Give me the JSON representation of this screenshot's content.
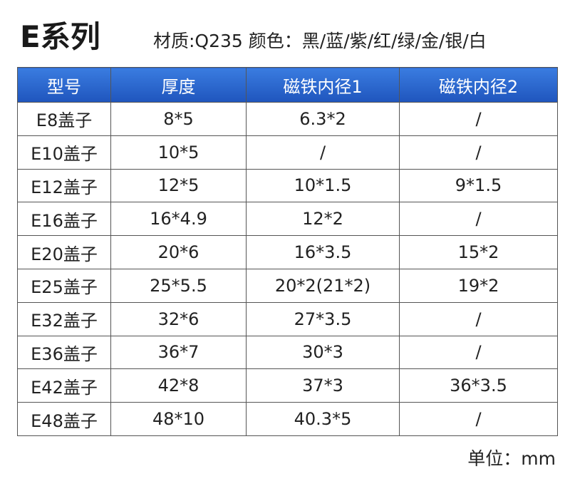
{
  "header": {
    "title": "E系列",
    "subtitle": "材质:Q235 颜色：黑/蓝/紫/红/绿/金/银/白"
  },
  "table": {
    "columns": [
      "型号",
      "厚度",
      "磁铁内径1",
      "磁铁内径2"
    ],
    "rows": [
      [
        "E8盖子",
        "8*5",
        "6.3*2",
        "/"
      ],
      [
        "E10盖子",
        "10*5",
        "/",
        "/"
      ],
      [
        "E12盖子",
        "12*5",
        "10*1.5",
        "9*1.5"
      ],
      [
        "E16盖子",
        "16*4.9",
        "12*2",
        "/"
      ],
      [
        "E20盖子",
        "20*6",
        "16*3.5",
        "15*2"
      ],
      [
        "E25盖子",
        "25*5.5",
        "20*2(21*2)",
        "19*2"
      ],
      [
        "E32盖子",
        "32*6",
        "27*3.5",
        "/"
      ],
      [
        "E36盖子",
        "36*7",
        "30*3",
        "/"
      ],
      [
        "E42盖子",
        "42*8",
        "37*3",
        "36*3.5"
      ],
      [
        "E48盖子",
        "48*10",
        "40.3*5",
        "/"
      ]
    ]
  },
  "footer": {
    "unit": "单位：mm"
  }
}
